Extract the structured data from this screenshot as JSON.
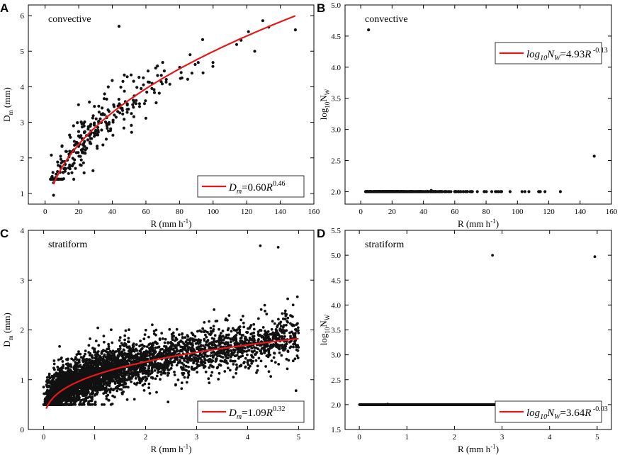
{
  "chart_data": [
    {
      "type": "scatter",
      "letter": "A",
      "title": "convective",
      "xlabel": "R (mm h",
      "xlabel_sup": "-1",
      "xlabel_close": ")",
      "ylabel": "D",
      "ylabel_sub": "m",
      "ylabel_rest": " (mm)",
      "xlim": [
        -10,
        160
      ],
      "ylim": [
        0.7,
        6.3
      ],
      "xticks": [
        0,
        20,
        40,
        60,
        80,
        100,
        120,
        140,
        160
      ],
      "yticks": [
        1,
        2,
        3,
        4,
        5,
        6
      ],
      "ytick_decimals": 0,
      "legend_pos": "bottom-right",
      "fit": {
        "a": 0.6,
        "b": 0.46,
        "xrange": [
          5,
          149
        ],
        "color": "#e31a1c"
      },
      "legend": {
        "var": "D",
        "var_sub": "m",
        "eq": "=0.60",
        "r": "R",
        "exp": "0.46"
      },
      "scatter": {
        "n": 300,
        "x_max": 150,
        "x_scale": 38,
        "x_shift": 3,
        "spread": 0.45,
        "seed": 11,
        "y_clip": [
          1.4,
          6.0
        ]
      },
      "extra_points": [
        [
          5,
          0.95
        ],
        [
          149,
          5.6
        ],
        [
          44,
          5.7
        ],
        [
          5,
          1.3
        ]
      ]
    },
    {
      "type": "scatter",
      "letter": "B",
      "title": "convective",
      "xlabel": "R (mm h",
      "xlabel_sup": "-1",
      "xlabel_close": ")",
      "ylabel": "log",
      "ylabel_sub": "10",
      "ylabel_rest": "N",
      "ylabel_sub2": "W",
      "xlim": [
        -10,
        160
      ],
      "ylim": [
        1.8,
        5.0
      ],
      "xticks": [
        0,
        20,
        40,
        60,
        80,
        100,
        120,
        140,
        160
      ],
      "yticks": [
        2.0,
        2.5,
        3.0,
        3.5,
        4.0,
        4.5,
        5.0
      ],
      "ytick_decimals": 1,
      "legend_pos": "top-right",
      "fit": {
        "a": 4.93,
        "b": -0.13,
        "xrange": [
          5,
          149
        ],
        "color": "#e31a1c",
        "log10": true
      },
      "legend": {
        "var": "log",
        "var_sub": "10",
        "var2": "N",
        "var2_sub": "W",
        "eq": "=4.93",
        "r": "R",
        "exp": " -0.13"
      },
      "scatter": {
        "n": 300,
        "x_max": 150,
        "x_scale": 38,
        "x_shift": 3,
        "spread": 0.38,
        "seed": 23,
        "y_clip": [
          2.0,
          4.1
        ]
      },
      "extra_points": [
        [
          5,
          4.6
        ],
        [
          149,
          2.57
        ],
        [
          45,
          2.02
        ]
      ]
    },
    {
      "type": "scatter",
      "letter": "C",
      "title": "stratiform",
      "xlabel": "R (mm h",
      "xlabel_sup": "-1",
      "xlabel_close": ")",
      "ylabel": "D",
      "ylabel_sub": "m",
      "ylabel_rest": " (mm)",
      "xlim": [
        -0.3,
        5.3
      ],
      "ylim": [
        0,
        4
      ],
      "xticks": [
        0,
        1,
        2,
        3,
        4,
        5
      ],
      "yticks": [
        0,
        1,
        2,
        3,
        4
      ],
      "ytick_decimals": 0,
      "legend_pos": "bottom-right",
      "fit": {
        "a": 1.09,
        "b": 0.32,
        "xrange": [
          0.05,
          5
        ],
        "color": "#e31a1c"
      },
      "legend": {
        "var": "D",
        "var_sub": "m",
        "eq": "=1.09",
        "r": "R",
        "exp": "0.32"
      },
      "scatter": {
        "n": 4200,
        "x_max": 5,
        "x_scale": 1.05,
        "x_shift": 0.02,
        "spread": 0.3,
        "seed": 37,
        "y_clip": [
          0.5,
          3.7
        ],
        "uniform_frac": 0.45
      },
      "extra_points": [
        [
          4.6,
          3.66
        ],
        [
          4.25,
          3.69
        ],
        [
          4.95,
          0.78
        ]
      ]
    },
    {
      "type": "scatter",
      "letter": "D",
      "title": "stratiform",
      "xlabel": "R (mm h",
      "xlabel_sup": "-1",
      "xlabel_close": ")",
      "ylabel": "log",
      "ylabel_sub": "10",
      "ylabel_rest": "N",
      "ylabel_sub2": "W",
      "xlim": [
        -0.3,
        5.3
      ],
      "ylim": [
        1.5,
        5.5
      ],
      "xticks": [
        0,
        1,
        2,
        3,
        4,
        5
      ],
      "yticks": [
        1.5,
        2.0,
        2.5,
        3.0,
        3.5,
        4.0,
        4.5,
        5.0,
        5.5
      ],
      "ytick_decimals": 1,
      "legend_pos": "bottom-right",
      "fit": {
        "a": 3.64,
        "b": -0.03,
        "xrange": [
          0.05,
          5
        ],
        "color": "#e31a1c",
        "log10": true
      },
      "legend": {
        "var": "log",
        "var_sub": "10",
        "var2": "N",
        "var2_sub": "W",
        "eq": "=3.64",
        "r": "R",
        "exp": " -0.03"
      },
      "scatter": {
        "n": 4200,
        "x_max": 5,
        "x_scale": 1.05,
        "x_shift": 0.02,
        "spread": 0.5,
        "seed": 53,
        "y_clip": [
          2.0,
          5.0
        ],
        "uniform_frac": 0.45
      },
      "extra_points": [
        [
          4.95,
          4.97
        ],
        [
          2.8,
          5.0
        ]
      ]
    }
  ]
}
